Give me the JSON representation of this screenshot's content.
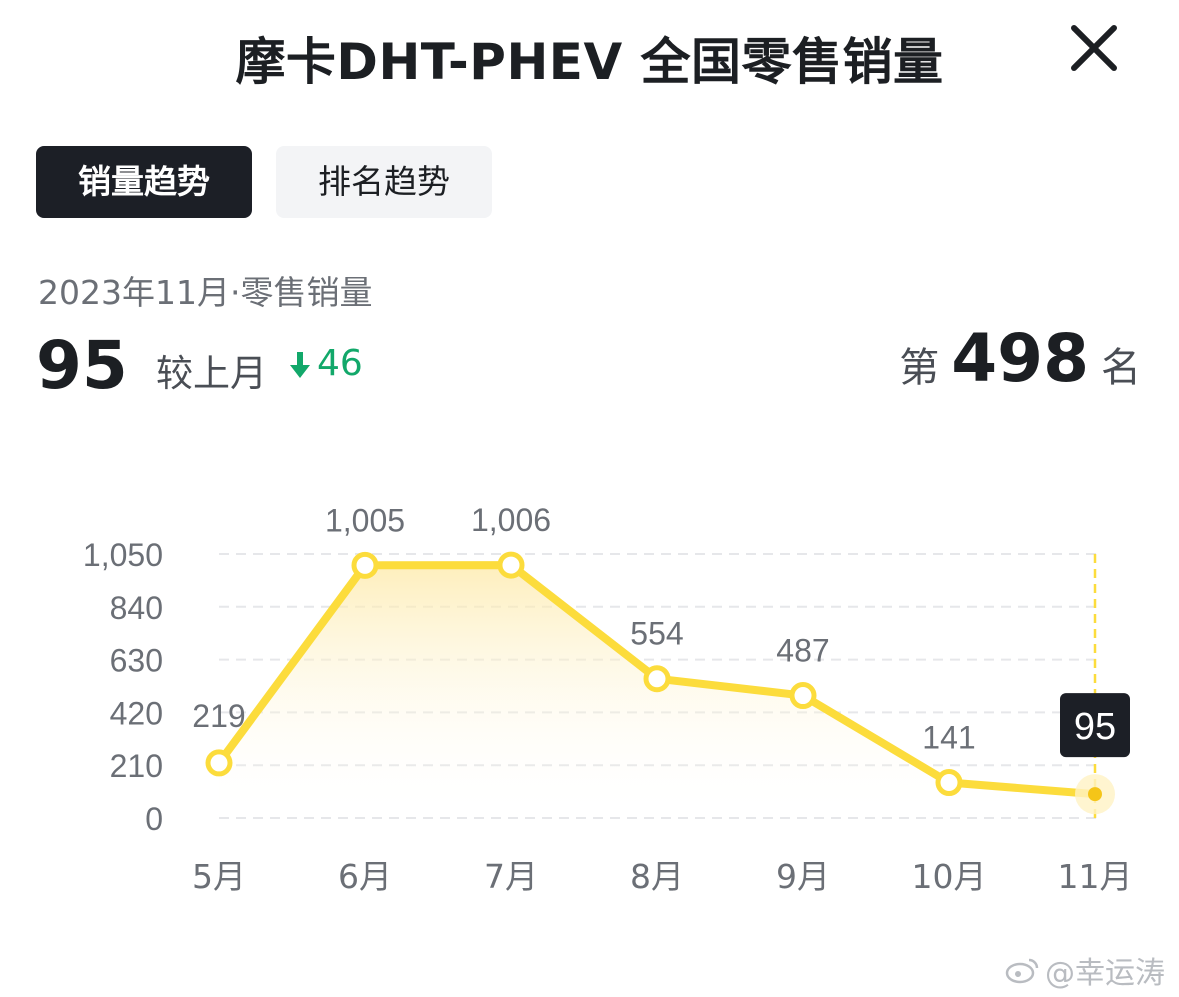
{
  "header": {
    "title": "摩卡DHT-PHEV 全国零售销量"
  },
  "tabs": [
    {
      "label": "销量趋势",
      "active": true
    },
    {
      "label": "排名趋势",
      "active": false
    }
  ],
  "summary": {
    "period": "2023年11月·零售销量",
    "value": "95",
    "compare_label": "较上月",
    "compare_delta": "46",
    "compare_direction": "down",
    "rank_prefix": "第",
    "rank_value": "498",
    "rank_suffix": "名"
  },
  "colors": {
    "line": "#fcdc3c",
    "delta_down": "#12a86a",
    "tab_active": "#1c1f26"
  },
  "chart_data": {
    "type": "line",
    "categories": [
      "5月",
      "6月",
      "7月",
      "8月",
      "9月",
      "10月",
      "11月"
    ],
    "values": [
      219,
      1005,
      1006,
      554,
      487,
      141,
      95
    ],
    "value_labels": [
      "219",
      "1,005",
      "1,006",
      "554",
      "487",
      "141",
      "95"
    ],
    "y_ticks": [
      "0",
      "210",
      "420",
      "630",
      "840",
      "1,050"
    ],
    "y_tick_values": [
      0,
      210,
      420,
      630,
      840,
      1050
    ],
    "ylim": [
      0,
      1050
    ],
    "grid": true,
    "highlight_index": 6
  },
  "watermark": "@幸运涛"
}
